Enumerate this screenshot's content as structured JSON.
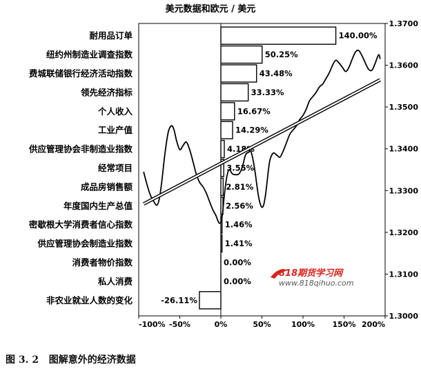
{
  "chart_data": {
    "type": "bar",
    "title": "美元数据和欧元 / 美元",
    "orientation": "horizontal",
    "categories": [
      "耐用品订单",
      "纽约州制造业调查指数",
      "费城联储银行经济活动指数",
      "领先经济指标",
      "个人收入",
      "工业产值",
      "供应管理协会非制造业指数",
      "经常项目",
      "成品房销售额",
      "年度国内生产总值",
      "密歇根大学消费者信心指数",
      "供应管理协会制造业指数",
      "消费者物价指数",
      "私人消费",
      "非农业就业人数的变化"
    ],
    "values": [
      140.0,
      50.25,
      43.48,
      33.33,
      16.67,
      14.29,
      4.18,
      3.55,
      2.81,
      2.56,
      1.46,
      1.41,
      0.0,
      0.0,
      -26.11
    ],
    "value_labels": [
      "140.00%",
      "50.25%",
      "43.48%",
      "33.33%",
      "16.67%",
      "14.29%",
      "4.18%",
      "3.55%",
      "2.81%",
      "2.56%",
      "1.46%",
      "1.41%",
      "0.00%",
      "0.00%",
      "-26.11%"
    ],
    "xlim": [
      -100,
      200
    ],
    "x_ticks": [
      -100,
      -50,
      0,
      50,
      100,
      150,
      200
    ],
    "x_tick_labels": [
      "-100%",
      "-50%",
      "0%",
      "50%",
      "100%",
      "150%",
      "200%"
    ],
    "y2lim": [
      1.3,
      1.37
    ],
    "y2_ticks": [
      1.3,
      1.31,
      1.32,
      1.33,
      1.34,
      1.35,
      1.36,
      1.37
    ],
    "y2_tick_labels": [
      "1.3000",
      "1.3100",
      "1.3200",
      "1.3300",
      "1.3400",
      "1.3500",
      "1.3600",
      "1.3700"
    ],
    "line_series": {
      "x": [
        -94,
        -90,
        -86,
        -82,
        -78,
        -75,
        -72,
        -68,
        -64,
        -60,
        -57,
        -54,
        -50,
        -46,
        -42,
        -38,
        -34,
        -30,
        -26,
        -22,
        -18,
        -14,
        -10,
        -6,
        -4,
        -2,
        0,
        2,
        4,
        7,
        10,
        14,
        18,
        22,
        26,
        30,
        34,
        36,
        38,
        40,
        42,
        44,
        46,
        48,
        50,
        52,
        54,
        56,
        58,
        60,
        64,
        68,
        72,
        76,
        80,
        84,
        88,
        92,
        96,
        100,
        104,
        108,
        112,
        116,
        120,
        124,
        128,
        132,
        136,
        140,
        144,
        148,
        152,
        156,
        160,
        164,
        168,
        172,
        176,
        180,
        184,
        188,
        192,
        194
      ],
      "y": [
        1.3345,
        1.3315,
        1.329,
        1.3275,
        1.3265,
        1.328,
        1.332,
        1.339,
        1.344,
        1.3455,
        1.3445,
        1.342,
        1.3398,
        1.3408,
        1.3416,
        1.3398,
        1.337,
        1.334,
        1.332,
        1.331,
        1.3295,
        1.3275,
        1.3255,
        1.324,
        1.323,
        1.3222,
        1.3225,
        1.3245,
        1.3285,
        1.333,
        1.335,
        1.334,
        1.3338,
        1.334,
        1.3355,
        1.3385,
        1.3392,
        1.3395,
        1.3385,
        1.3365,
        1.334,
        1.331,
        1.3285,
        1.3268,
        1.326,
        1.3265,
        1.3285,
        1.3315,
        1.335,
        1.3375,
        1.339,
        1.3385,
        1.338,
        1.3395,
        1.3415,
        1.3435,
        1.3445,
        1.3455,
        1.347,
        1.348,
        1.3495,
        1.3515,
        1.3525,
        1.3535,
        1.3548,
        1.3555,
        1.3568,
        1.3582,
        1.36,
        1.3612,
        1.3605,
        1.3595,
        1.3585,
        1.3595,
        1.3615,
        1.3632,
        1.3635,
        1.3622,
        1.3605,
        1.359,
        1.3588,
        1.3605,
        1.3625,
        1.3615
      ]
    },
    "trend_line": {
      "x": [
        -94,
        194
      ],
      "y": [
        1.3268,
        1.3565
      ]
    }
  },
  "watermark": {
    "line1": "818期货学习网",
    "line2": "www.818qihuo.com",
    "accent": "#d9231c"
  },
  "caption": {
    "figure_no": "图 3. 2",
    "text": "图解意外的经济数据"
  }
}
